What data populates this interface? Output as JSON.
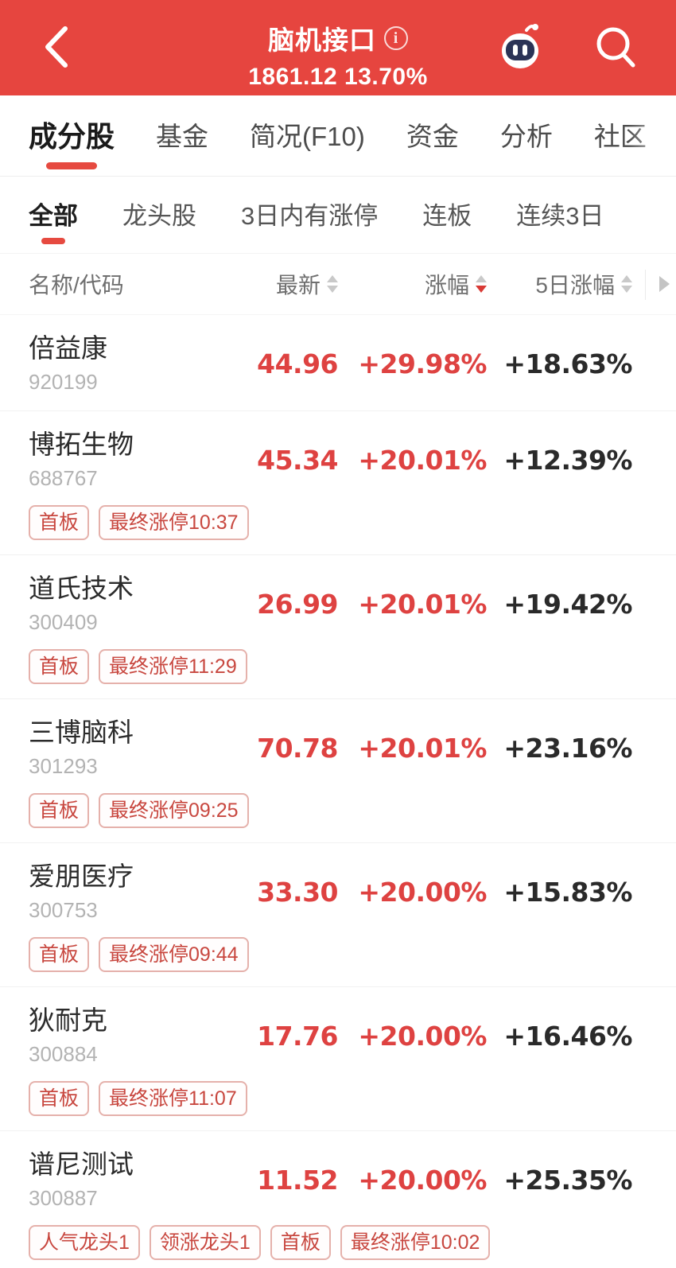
{
  "header": {
    "title": "脑机接口",
    "subtitle": "1861.12 13.70%",
    "info_icon_glyph": "i"
  },
  "nav_tabs": [
    "成分股",
    "基金",
    "简况(F10)",
    "资金",
    "分析",
    "社区"
  ],
  "nav_active_index": 0,
  "filter_tabs": [
    "全部",
    "龙头股",
    "3日内有涨停",
    "连板",
    "连续3日"
  ],
  "filter_active_index": 0,
  "table": {
    "columns": {
      "name": "名称/代码",
      "last": "最新",
      "change": "涨幅",
      "change_5d": "5日涨幅"
    },
    "sort": {
      "column": "涨幅",
      "direction": "desc"
    },
    "rows": [
      {
        "name": "倍益康",
        "code": "920199",
        "price": "44.96",
        "change": "+29.98%",
        "change_5d": "+18.63%",
        "tags": []
      },
      {
        "name": "博拓生物",
        "code": "688767",
        "price": "45.34",
        "change": "+20.01%",
        "change_5d": "+12.39%",
        "tags": [
          "首板",
          "最终涨停10:37"
        ]
      },
      {
        "name": "道氏技术",
        "code": "300409",
        "price": "26.99",
        "change": "+20.01%",
        "change_5d": "+19.42%",
        "tags": [
          "首板",
          "最终涨停11:29"
        ]
      },
      {
        "name": "三博脑科",
        "code": "301293",
        "price": "70.78",
        "change": "+20.01%",
        "change_5d": "+23.16%",
        "tags": [
          "首板",
          "最终涨停09:25"
        ]
      },
      {
        "name": "爱朋医疗",
        "code": "300753",
        "price": "33.30",
        "change": "+20.00%",
        "change_5d": "+15.83%",
        "tags": [
          "首板",
          "最终涨停09:44"
        ]
      },
      {
        "name": "狄耐克",
        "code": "300884",
        "price": "17.76",
        "change": "+20.00%",
        "change_5d": "+16.46%",
        "tags": [
          "首板",
          "最终涨停11:07"
        ]
      },
      {
        "name": "谱尼测试",
        "code": "300887",
        "price": "11.52",
        "change": "+20.00%",
        "change_5d": "+25.35%",
        "tags": [
          "人气龙头1",
          "领涨龙头1",
          "首板",
          "最终涨停10:02"
        ]
      }
    ]
  },
  "colors": {
    "header_red": "#e6453f",
    "accent_red": "#e64a40",
    "price_red": "#de4241",
    "tag_red": "#c8473f",
    "dark_text": "#2a2a2a",
    "code_gray": "#b3b3b3"
  }
}
